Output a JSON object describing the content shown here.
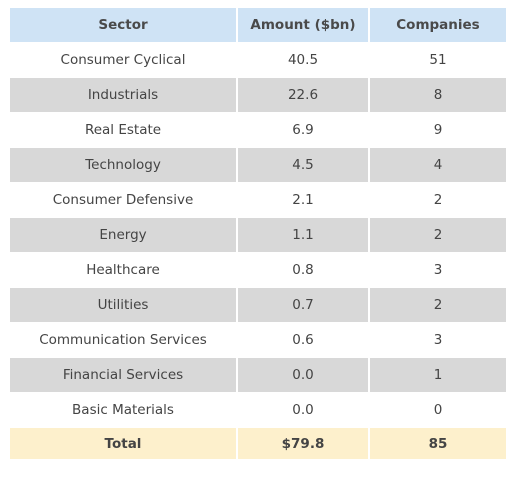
{
  "chart_data": {
    "type": "table",
    "columns": [
      "Sector",
      "Amount ($bn)",
      "Companies"
    ],
    "rows": [
      {
        "sector": "Consumer Cyclical",
        "amount": "40.5",
        "companies": "51"
      },
      {
        "sector": "Industrials",
        "amount": "22.6",
        "companies": "8"
      },
      {
        "sector": "Real Estate",
        "amount": "6.9",
        "companies": "9"
      },
      {
        "sector": "Technology",
        "amount": "4.5",
        "companies": "4"
      },
      {
        "sector": "Consumer Defensive",
        "amount": "2.1",
        "companies": "2"
      },
      {
        "sector": "Energy",
        "amount": "1.1",
        "companies": "2"
      },
      {
        "sector": "Healthcare",
        "amount": "0.8",
        "companies": "3"
      },
      {
        "sector": "Utilities",
        "amount": "0.7",
        "companies": "2"
      },
      {
        "sector": "Communication Services",
        "amount": "0.6",
        "companies": "3"
      },
      {
        "sector": "Financial Services",
        "amount": "0.0",
        "companies": "1"
      },
      {
        "sector": "Basic Materials",
        "amount": "0.0",
        "companies": "0"
      }
    ],
    "total": {
      "label": "Total",
      "amount": "$79.8",
      "companies": "85"
    }
  },
  "colors": {
    "header_bg": "#cfe3f5",
    "row_alt_bg": "#d8d8d8",
    "total_bg": "#fdf0cc"
  }
}
